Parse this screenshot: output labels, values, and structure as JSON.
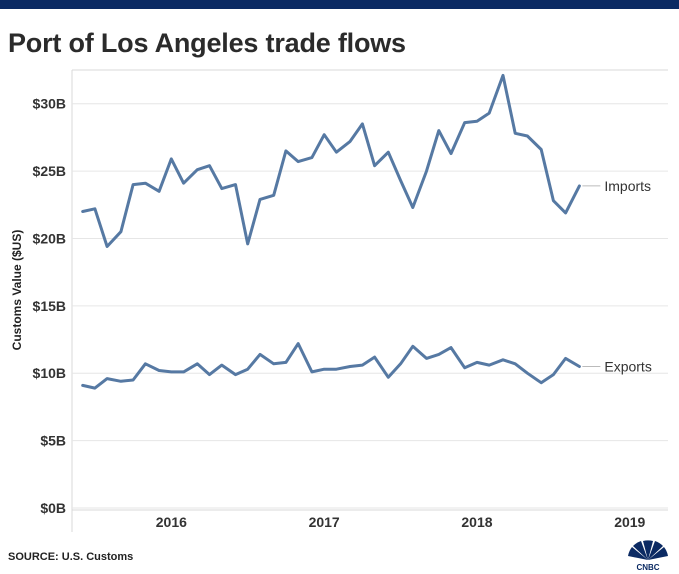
{
  "header": {
    "title": "Port of Los Angeles trade flows"
  },
  "footer": {
    "source": "SOURCE: U.S. Customs",
    "logo_text": "CNBC"
  },
  "colors": {
    "top_bar": "#0b2a63",
    "series": "#5679a3",
    "grid": "#e6e6e6",
    "axis_text": "#333333"
  },
  "chart_data": {
    "type": "line",
    "title": "Port of Los Angeles trade flows",
    "xlabel": "",
    "ylabel": "Customs Value ($US)",
    "ylim": [
      0,
      32.5
    ],
    "yticks": [
      0,
      5,
      10,
      15,
      20,
      25,
      30
    ],
    "ytick_labels": [
      "$0B",
      "$5B",
      "$10B",
      "$15B",
      "$20B",
      "$25B",
      "$30B"
    ],
    "xlim": [
      2015.35,
      2019.25
    ],
    "xticks": [
      2016,
      2017,
      2018,
      2019
    ],
    "xtick_labels": [
      "2016",
      "2017",
      "2018",
      "2019"
    ],
    "grid": true,
    "legend": "inline labels at line ends",
    "x": [
      2015.42,
      2015.5,
      2015.58,
      2015.67,
      2015.75,
      2015.83,
      2015.92,
      2016.0,
      2016.08,
      2016.17,
      2016.25,
      2016.33,
      2016.42,
      2016.5,
      2016.58,
      2016.67,
      2016.75,
      2016.83,
      2016.92,
      2017.0,
      2017.08,
      2017.17,
      2017.25,
      2017.33,
      2017.42,
      2017.5,
      2017.58,
      2017.67,
      2017.75,
      2017.83,
      2017.92,
      2018.0,
      2018.08,
      2018.17,
      2018.25,
      2018.33,
      2018.42,
      2018.5,
      2018.58,
      2018.67
    ],
    "series": [
      {
        "name": "Imports",
        "values": [
          22.0,
          22.2,
          19.4,
          20.5,
          24.0,
          24.1,
          23.5,
          25.9,
          24.1,
          25.1,
          25.4,
          23.7,
          24.0,
          19.6,
          22.9,
          23.2,
          26.5,
          25.7,
          26.0,
          27.7,
          26.4,
          27.2,
          28.5,
          25.4,
          26.4,
          24.3,
          22.3,
          25.0,
          28.0,
          26.3,
          28.6,
          28.7,
          29.3,
          32.1,
          27.8,
          27.6,
          26.6,
          22.8,
          21.9,
          23.9
        ]
      },
      {
        "name": "Exports",
        "values": [
          9.1,
          8.9,
          9.6,
          9.4,
          9.5,
          10.7,
          10.2,
          10.1,
          10.1,
          10.7,
          9.9,
          10.6,
          9.9,
          10.3,
          11.4,
          10.7,
          10.8,
          12.2,
          10.1,
          10.3,
          10.3,
          10.5,
          10.6,
          11.2,
          9.7,
          10.7,
          12.0,
          11.1,
          11.4,
          11.9,
          10.4,
          10.8,
          10.6,
          11.0,
          10.7,
          10.0,
          9.3,
          9.9,
          11.1,
          10.5
        ]
      }
    ]
  }
}
